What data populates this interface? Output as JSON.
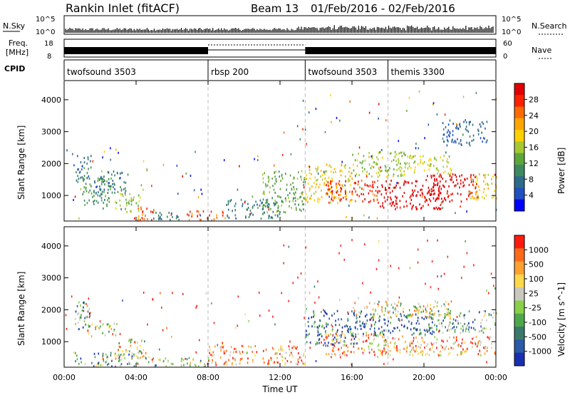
{
  "header": {
    "station": "Rankin Inlet (fitACF)",
    "beam": "Beam 13",
    "date_range": "01/Feb/2016 - 02/Feb/2016"
  },
  "summary": {
    "nsky_label": "N.Sky",
    "nsky_ticks": [
      "10^5",
      "10^0"
    ],
    "nsearch_label": "N.Search",
    "nsearch_ticks": [
      "10^5",
      "10^0"
    ],
    "freq_label_1": "Freq.",
    "freq_label_2": "[MHz]",
    "freq_ticks": [
      "18",
      "8"
    ],
    "nave_label": "Nave",
    "nave_ticks": [
      "60",
      "0"
    ],
    "cpid_label": "CPID",
    "cpid_segments": [
      {
        "label": "twofsound 3503",
        "start_hr": 0.0,
        "end_hr": 8.0
      },
      {
        "label": "rbsp 200",
        "start_hr": 8.0,
        "end_hr": 13.4
      },
      {
        "label": "twofsound 3503",
        "start_hr": 13.4,
        "end_hr": 18.0
      },
      {
        "label": "themis 3300",
        "start_hr": 18.0,
        "end_hr": 24.0
      }
    ]
  },
  "x_axis": {
    "label": "Time UT",
    "ticks": [
      "00:00",
      "04:00",
      "08:00",
      "12:00",
      "16:00",
      "20:00",
      "00:00"
    ]
  },
  "power_colorbar": {
    "label": "Power [dB]",
    "ticks": [
      "28",
      "24",
      "20",
      "16",
      "12",
      "8",
      "4"
    ],
    "colors": [
      "#0000ff",
      "#2050c0",
      "#2e6b8a",
      "#3d8a5e",
      "#5ea63a",
      "#a8c832",
      "#ffd000",
      "#ffa500",
      "#ff6a00",
      "#ff2000",
      "#e00000"
    ]
  },
  "velocity_colorbar": {
    "label": "Velocity [m s^-1]",
    "ticks": [
      "1000",
      "500",
      "100",
      "25",
      "-25",
      "-100",
      "-500",
      "-1000"
    ],
    "colors": [
      "#1a2fb0",
      "#2a5aa8",
      "#3a7a6a",
      "#4ea84a",
      "#8ad04a",
      "#c8c8c0",
      "#ffd84a",
      "#ffa030",
      "#ff6a18",
      "#ff1a10"
    ]
  },
  "chart_data": [
    {
      "type": "heatmap",
      "name": "power",
      "xlabel": "Time UT",
      "ylabel": "Slant Range [km]",
      "xlim": [
        0,
        24
      ],
      "ylim": [
        200,
        4600
      ],
      "yticks": [
        1000,
        2000,
        3000,
        4000
      ],
      "colorbar_label": "Power [dB]",
      "grid": "dashed verticals at CPID changes",
      "regions": [
        {
          "t0": 0.5,
          "t1": 1.5,
          "r0": 1500,
          "r1": 2300,
          "level": 8
        },
        {
          "t0": 1.0,
          "t1": 2.6,
          "r0": 600,
          "r1": 1600,
          "level": 10
        },
        {
          "t0": 1.6,
          "t1": 3.6,
          "r0": 1100,
          "r1": 1800,
          "level": 8
        },
        {
          "t0": 2.8,
          "t1": 4.2,
          "r0": 500,
          "r1": 1100,
          "level": 14
        },
        {
          "t0": 3.8,
          "t1": 5.0,
          "r0": 250,
          "r1": 700,
          "level": 24
        },
        {
          "t0": 4.5,
          "t1": 6.5,
          "r0": 250,
          "r1": 500,
          "level": 8
        },
        {
          "t0": 6.8,
          "t1": 9.0,
          "r0": 250,
          "r1": 550,
          "level": 24
        },
        {
          "t0": 9.0,
          "t1": 12.0,
          "r0": 300,
          "r1": 900,
          "level": 8
        },
        {
          "t0": 11.0,
          "t1": 13.4,
          "r0": 500,
          "r1": 1800,
          "level": 12
        },
        {
          "t0": 13.4,
          "t1": 16.0,
          "r0": 800,
          "r1": 2000,
          "level": 18
        },
        {
          "t0": 14.5,
          "t1": 17.5,
          "r0": 800,
          "r1": 1500,
          "level": 26
        },
        {
          "t0": 16.0,
          "t1": 19.0,
          "r0": 1600,
          "r1": 2400,
          "level": 14
        },
        {
          "t0": 17.5,
          "t1": 21.0,
          "r0": 600,
          "r1": 1500,
          "level": 30
        },
        {
          "t0": 20.0,
          "t1": 23.0,
          "r0": 800,
          "r1": 1700,
          "level": 30
        },
        {
          "t0": 22.5,
          "t1": 24.0,
          "r0": 900,
          "r1": 1700,
          "level": 18
        },
        {
          "t0": 19.0,
          "t1": 21.5,
          "r0": 1700,
          "r1": 2300,
          "level": 16
        },
        {
          "t0": 21.0,
          "t1": 23.5,
          "r0": 2600,
          "r1": 3400,
          "level": 6
        }
      ]
    },
    {
      "type": "heatmap",
      "name": "velocity",
      "xlabel": "Time UT",
      "ylabel": "Slant Range [km]",
      "xlim": [
        0,
        24
      ],
      "ylim": [
        200,
        4600
      ],
      "yticks": [
        1000,
        2000,
        3000,
        4000
      ],
      "colorbar_label": "Velocity [m s^-1]",
      "regions": [
        {
          "t0": 0.5,
          "t1": 1.4,
          "r0": 1400,
          "r1": 2300,
          "level": 3
        },
        {
          "t0": 1.2,
          "t1": 3.0,
          "r0": 1200,
          "r1": 1600,
          "level": 5
        },
        {
          "t0": 2.8,
          "t1": 4.5,
          "r0": 500,
          "r1": 1100,
          "level": 5
        },
        {
          "t0": 0.5,
          "t1": 4.0,
          "r0": 250,
          "r1": 700,
          "level": 3
        },
        {
          "t0": 4.5,
          "t1": 8.0,
          "r0": 250,
          "r1": 550,
          "level": 4
        },
        {
          "t0": 8.0,
          "t1": 13.4,
          "r0": 300,
          "r1": 900,
          "level": 7
        },
        {
          "t0": 13.4,
          "t1": 16.5,
          "r0": 900,
          "r1": 2000,
          "level": 1
        },
        {
          "t0": 14.5,
          "t1": 18.0,
          "r0": 600,
          "r1": 1300,
          "level": 7
        },
        {
          "t0": 16.5,
          "t1": 20.5,
          "r0": 1200,
          "r1": 1900,
          "level": 1
        },
        {
          "t0": 17.5,
          "t1": 24.0,
          "r0": 600,
          "r1": 1200,
          "level": 7
        },
        {
          "t0": 20.0,
          "t1": 24.0,
          "r0": 1300,
          "r1": 2000,
          "level": 3
        },
        {
          "t0": 16.0,
          "t1": 21.5,
          "r0": 1750,
          "r1": 2300,
          "level": 5
        }
      ]
    }
  ]
}
